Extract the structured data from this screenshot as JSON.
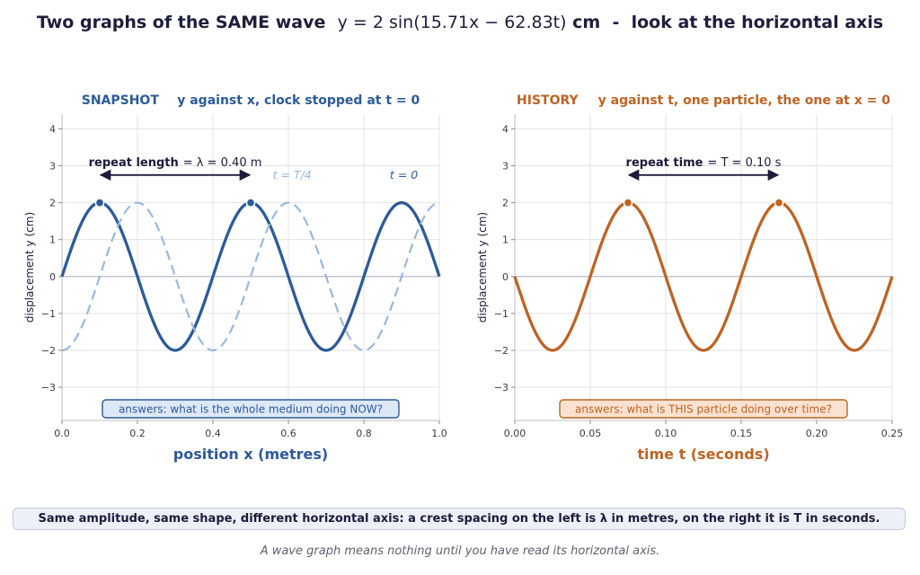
{
  "page": {
    "title_prefix": "Two graphs of the SAME wave",
    "title_equation": "y = 2 sin(15.71x − 62.83t)",
    "title_unit": "cm",
    "title_separator": "-",
    "title_suffix": "look at the horizontal axis",
    "summary": "Same amplitude, same shape, different horizontal axis:  a crest spacing on the left is λ in metres,  on the right it is T in seconds.",
    "footnote": "A wave graph means nothing until you have read its horizontal axis."
  },
  "colors": {
    "snapshot": "#2d5a98",
    "snapshot_dashed": "#9ab8dc",
    "history": "#bc6424",
    "dark": "#1c1c3a",
    "grid": "#e3e3e3",
    "zero_line": "#b8bcc8"
  },
  "chart_data": [
    {
      "type": "line",
      "id": "snapshot",
      "title_tag": "SNAPSHOT",
      "title_rest": "y against x,  clock stopped at t = 0",
      "xlabel": "position   x   (metres)",
      "ylabel": "displacement  y  (cm)",
      "xlim": [
        0,
        1.0
      ],
      "ylim": [
        -3.9,
        4.4
      ],
      "xticks": [
        0.0,
        0.2,
        0.4,
        0.6,
        0.8,
        1.0
      ],
      "xtick_labels": [
        "0.0",
        "0.2",
        "0.4",
        "0.6",
        "0.8",
        "1.0"
      ],
      "yticks": [
        4,
        3,
        2,
        1,
        0,
        -1,
        -2,
        -3
      ],
      "ytick_labels": [
        "4",
        "3",
        "2",
        "1",
        "0",
        "−1",
        "−2",
        "−3"
      ],
      "grid": true,
      "series": [
        {
          "name": "t = 0",
          "style": "solid",
          "function": "y = 2 sin(15.71x)",
          "amplitude": 2,
          "wavelength": 0.4,
          "phase_shift": 0
        },
        {
          "name": "t = T/4",
          "style": "dashed",
          "function": "y = 2 sin(15.71x − π/2)",
          "amplitude": 2,
          "wavelength": 0.4,
          "phase_shift": 0.1
        }
      ],
      "markers": [
        {
          "x": 0.1,
          "y": 2
        },
        {
          "x": 0.5,
          "y": 2
        }
      ],
      "span_arrow": {
        "x1": 0.1,
        "x2": 0.5,
        "y": 2.75,
        "label_bold": "repeat length",
        "label_rest": "= λ = 0.40 m"
      },
      "series_labels": [
        {
          "text": "t = T/4",
          "x": 0.61,
          "y": 2.65
        },
        {
          "text": "t = 0",
          "x": 0.906,
          "y": 2.65
        }
      ],
      "answer_box": "answers:  what is the whole medium doing NOW?"
    },
    {
      "type": "line",
      "id": "history",
      "title_tag": "HISTORY",
      "title_rest": "y against t,  one particle, the one at x = 0",
      "xlabel": "time   t   (seconds)",
      "ylabel": "displacement  y  (cm)",
      "xlim": [
        0,
        0.25
      ],
      "ylim": [
        -3.9,
        4.4
      ],
      "xticks": [
        0.0,
        0.05,
        0.1,
        0.15,
        0.2,
        0.25
      ],
      "xtick_labels": [
        "0.00",
        "0.05",
        "0.10",
        "0.15",
        "0.20",
        "0.25"
      ],
      "yticks": [
        4,
        3,
        2,
        1,
        0,
        -1,
        -2,
        -3
      ],
      "ytick_labels": [
        "4",
        "3",
        "2",
        "1",
        "0",
        "−1",
        "−2",
        "−3"
      ],
      "grid": true,
      "series": [
        {
          "style": "solid",
          "function": "y = −2 sin(62.83t)",
          "amplitude": 2,
          "period": 0.1
        }
      ],
      "markers": [
        {
          "x": 0.075,
          "y": 2
        },
        {
          "x": 0.175,
          "y": 2
        }
      ],
      "span_arrow": {
        "x1": 0.075,
        "x2": 0.175,
        "y": 2.75,
        "label_bold": "repeat time",
        "label_rest": "= T = 0.10 s"
      },
      "answer_box": "answers:  what is THIS particle doing over time?"
    }
  ]
}
